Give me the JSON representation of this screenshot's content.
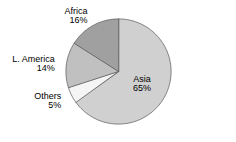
{
  "chart_data": {
    "type": "pie",
    "categories": [
      "Asia",
      "Others",
      "L. America",
      "Africa"
    ],
    "values": [
      65,
      5,
      14,
      16
    ],
    "value_labels": [
      "65%",
      "5%",
      "14%",
      "16%"
    ],
    "colors": [
      "#d0d0d0",
      "#f5f5f5",
      "#c0c0c0",
      "#a0a0a0"
    ]
  }
}
